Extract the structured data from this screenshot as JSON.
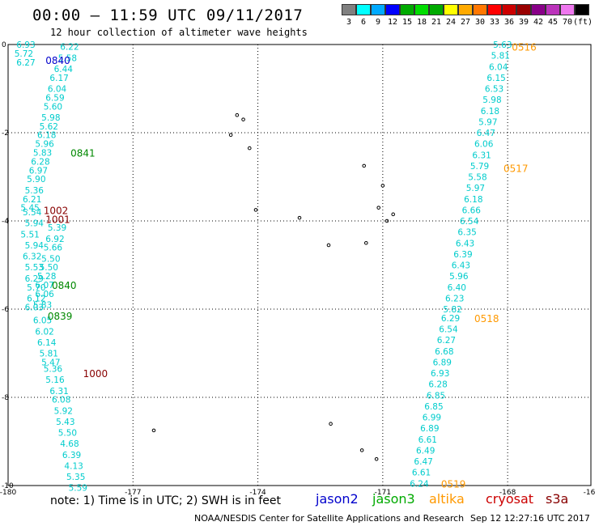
{
  "header": {
    "title": "00:00 – 11:59 UTC 09/11/2017",
    "subtitle": "12 hour collection of altimeter wave heights"
  },
  "legend": {
    "colors": [
      "#808080",
      "#00ffff",
      "#00aaff",
      "#0000ff",
      "#00aa00",
      "#00dd00",
      "#00aa00",
      "#ffff00",
      "#ffaa00",
      "#ff7700",
      "#ff0000",
      "#cc0000",
      "#990000",
      "#880088",
      "#bb33bb",
      "#ee77ee",
      "#000000"
    ],
    "labels": [
      "3",
      "6",
      "9",
      "12",
      "15",
      "18",
      "21",
      "24",
      "27",
      "30",
      "33",
      "36",
      "39",
      "42",
      "45",
      "70",
      "(ft)"
    ]
  },
  "map": {
    "lon_ticks": [
      "-180",
      "-177",
      "-174",
      "-171",
      "-168",
      "-16"
    ],
    "lat_ticks": [
      "0",
      "-2",
      "-4",
      "-6",
      "-8",
      "-10"
    ],
    "tracks": [
      {
        "values": [
          "6.93",
          "5.72",
          "6.27"
        ],
        "color": "#00cccc",
        "lonlat": [
          [
            -179.8,
            0.0
          ],
          [
            -179.85,
            -0.2
          ],
          [
            -179.8,
            -0.4
          ]
        ]
      },
      {
        "values": [
          "6.22",
          "5.58",
          "6.44",
          "6.17",
          "6.04",
          "6.59",
          "5.60",
          "5.98",
          "5.62",
          "6.18",
          "5.96",
          "5.83",
          "6.28",
          "6.97",
          "5.90",
          "5.36",
          "6.21",
          "5.45"
        ],
        "color": "#00cccc",
        "lonlat": [
          [
            -178.75,
            -0.05
          ],
          [
            -178.8,
            -0.3
          ],
          [
            -178.9,
            -0.55
          ],
          [
            -179.0,
            -0.75
          ],
          [
            -179.05,
            -1.0
          ],
          [
            -179.1,
            -1.2
          ],
          [
            -179.15,
            -1.4
          ],
          [
            -179.2,
            -1.65
          ],
          [
            -179.25,
            -1.85
          ],
          [
            -179.3,
            -2.05
          ],
          [
            -179.35,
            -2.25
          ],
          [
            -179.4,
            -2.45
          ],
          [
            -179.45,
            -2.65
          ],
          [
            -179.5,
            -2.85
          ],
          [
            -179.55,
            -3.05
          ],
          [
            -179.6,
            -3.3
          ],
          [
            -179.65,
            -3.5
          ],
          [
            -179.7,
            -3.7
          ]
        ]
      },
      {
        "values": [
          "5.54",
          "5.94",
          "5.51",
          "5.94",
          "6.32",
          "5.53",
          "6.29",
          "5.70",
          "6.12",
          "6.03"
        ],
        "color": "#00cccc",
        "lonlat": [
          [
            -179.65,
            -3.8
          ],
          [
            -179.6,
            -4.05
          ],
          [
            -179.7,
            -4.3
          ],
          [
            -179.6,
            -4.55
          ],
          [
            -179.65,
            -4.8
          ],
          [
            -179.6,
            -5.05
          ],
          [
            -179.6,
            -5.3
          ],
          [
            -179.55,
            -5.5
          ],
          [
            -179.55,
            -5.75
          ],
          [
            -179.6,
            -5.95
          ]
        ]
      },
      {
        "values": [
          "5.39",
          "6.92",
          "5.66",
          "5.50",
          "5.50",
          "5.28",
          "6.07",
          "6.06",
          "5.83"
        ],
        "color": "#00cccc",
        "lonlat": [
          [
            -179.05,
            -4.15
          ],
          [
            -179.1,
            -4.4
          ],
          [
            -179.15,
            -4.6
          ],
          [
            -179.2,
            -4.85
          ],
          [
            -179.25,
            -5.05
          ],
          [
            -179.3,
            -5.25
          ],
          [
            -179.35,
            -5.45
          ],
          [
            -179.35,
            -5.65
          ],
          [
            -179.4,
            -5.9
          ]
        ]
      },
      {
        "values": [
          "6.05",
          "6.02",
          "6.14",
          "5.81",
          "5.47",
          "5.36",
          "5.16",
          "6.31",
          "6.08",
          "5.92",
          "5.43",
          "5.50",
          "4.68",
          "6.39",
          "4.13",
          "5.35",
          "5.59"
        ],
        "color": "#00cccc",
        "lonlat": [
          [
            -179.4,
            -6.25
          ],
          [
            -179.35,
            -6.5
          ],
          [
            -179.3,
            -6.75
          ],
          [
            -179.25,
            -7.0
          ],
          [
            -179.2,
            -7.2
          ],
          [
            -179.15,
            -7.35
          ],
          [
            -179.1,
            -7.6
          ],
          [
            -179.0,
            -7.85
          ],
          [
            -178.95,
            -8.05
          ],
          [
            -178.9,
            -8.3
          ],
          [
            -178.85,
            -8.55
          ],
          [
            -178.8,
            -8.8
          ],
          [
            -178.75,
            -9.05
          ],
          [
            -178.7,
            -9.3
          ],
          [
            -178.65,
            -9.55
          ],
          [
            -178.6,
            -9.8
          ],
          [
            -178.55,
            -10.05
          ]
        ]
      },
      {
        "values": [
          "5.63",
          "5.81",
          "6.04",
          "6.15",
          "6.53",
          "5.98",
          "6.18",
          "5.97",
          "6.47",
          "6.06",
          "6.31",
          "5.79",
          "5.58",
          "5.97",
          "6.18",
          "6.66",
          "6.54",
          "6.35",
          "6.43",
          "6.39",
          "6.43",
          "5.96",
          "6.40",
          "6.23",
          "5.82",
          "6.29",
          "6.54",
          "6.27",
          "6.68",
          "6.89",
          "6.93",
          "6.28",
          "6.85",
          "6.85",
          "6.99",
          "6.89",
          "6.61",
          "6.49",
          "6.47",
          "6.61",
          "6.24"
        ],
        "color": "#00cccc",
        "lonlat": [
          [
            -168.35,
            0.0
          ],
          [
            -168.4,
            -0.25
          ],
          [
            -168.45,
            -0.5
          ],
          [
            -168.5,
            -0.75
          ],
          [
            -168.55,
            -1.0
          ],
          [
            -168.6,
            -1.25
          ],
          [
            -168.65,
            -1.5
          ],
          [
            -168.7,
            -1.75
          ],
          [
            -168.75,
            -2.0
          ],
          [
            -168.8,
            -2.25
          ],
          [
            -168.85,
            -2.5
          ],
          [
            -168.9,
            -2.75
          ],
          [
            -168.95,
            -3.0
          ],
          [
            -169.0,
            -3.25
          ],
          [
            -169.05,
            -3.5
          ],
          [
            -169.1,
            -3.75
          ],
          [
            -169.15,
            -4.0
          ],
          [
            -169.2,
            -4.25
          ],
          [
            -169.25,
            -4.5
          ],
          [
            -169.3,
            -4.75
          ],
          [
            -169.35,
            -5.0
          ],
          [
            -169.4,
            -5.25
          ],
          [
            -169.45,
            -5.5
          ],
          [
            -169.5,
            -5.75
          ],
          [
            -169.55,
            -6.0
          ],
          [
            -169.6,
            -6.2
          ],
          [
            -169.65,
            -6.45
          ],
          [
            -169.7,
            -6.7
          ],
          [
            -169.75,
            -6.95
          ],
          [
            -169.8,
            -7.2
          ],
          [
            -169.85,
            -7.45
          ],
          [
            -169.9,
            -7.7
          ],
          [
            -169.95,
            -7.95
          ],
          [
            -170.0,
            -8.2
          ],
          [
            -170.05,
            -8.45
          ],
          [
            -170.1,
            -8.7
          ],
          [
            -170.15,
            -8.95
          ],
          [
            -170.2,
            -9.2
          ],
          [
            -170.25,
            -9.45
          ],
          [
            -170.3,
            -9.7
          ],
          [
            -170.35,
            -9.95
          ]
        ]
      }
    ],
    "time_labels": [
      {
        "text": "0840",
        "color": "#0000cc",
        "lon": -179.1,
        "lat": -0.35
      },
      {
        "text": "0841",
        "color": "#008800",
        "lon": -178.5,
        "lat": -2.45
      },
      {
        "text": "1002",
        "color": "#880000",
        "lon": -179.15,
        "lat": -3.75
      },
      {
        "text": "1001",
        "color": "#880000",
        "lon": -179.1,
        "lat": -3.95
      },
      {
        "text": "0840",
        "color": "#008800",
        "lon": -178.95,
        "lat": -5.45
      },
      {
        "text": "0839",
        "color": "#008800",
        "lon": -179.05,
        "lat": -6.15
      },
      {
        "text": "1000",
        "color": "#880000",
        "lon": -178.2,
        "lat": -7.45
      },
      {
        "text": "0516",
        "color": "#ff9900",
        "lon": -167.9,
        "lat": -0.05
      },
      {
        "text": "0517",
        "color": "#ff9900",
        "lon": -168.1,
        "lat": -2.8
      },
      {
        "text": "0518",
        "color": "#ff9900",
        "lon": -168.8,
        "lat": -6.2
      },
      {
        "text": "0519",
        "color": "#ff9900",
        "lon": -169.6,
        "lat": -9.95
      }
    ],
    "islands": [
      {
        "lon": -174.5,
        "lat": -1.6
      },
      {
        "lon": -174.35,
        "lat": -1.7
      },
      {
        "lon": -174.65,
        "lat": -2.05
      },
      {
        "lon": -174.2,
        "lat": -2.35
      },
      {
        "lon": -174.05,
        "lat": -3.75
      },
      {
        "lon": -173.0,
        "lat": -3.93
      },
      {
        "lon": -171.45,
        "lat": -2.75
      },
      {
        "lon": -171.0,
        "lat": -3.2
      },
      {
        "lon": -171.1,
        "lat": -3.7
      },
      {
        "lon": -170.75,
        "lat": -3.85
      },
      {
        "lon": -170.9,
        "lat": -4.0
      },
      {
        "lon": -172.3,
        "lat": -4.55
      },
      {
        "lon": -171.4,
        "lat": -4.5
      },
      {
        "lon": -172.25,
        "lat": -8.6
      },
      {
        "lon": -176.5,
        "lat": -8.75
      },
      {
        "lon": -171.5,
        "lat": -9.2
      },
      {
        "lon": -171.15,
        "lat": -9.4
      }
    ]
  },
  "footer": {
    "note": "note:  1) Time is in UTC; 2) SWH is in feet",
    "missions": [
      {
        "name": "jason2",
        "color": "#0000cc"
      },
      {
        "name": "jason3",
        "color": "#00aa00"
      },
      {
        "name": "altika",
        "color": "#ff9900"
      },
      {
        "name": "cryosat",
        "color": "#cc0000"
      },
      {
        "name": "s3a",
        "color": "#880000"
      }
    ],
    "credit": "NOAA/NESDIS Center for Satellite Applications and Research",
    "timestamp": "Sep 12 12:27:16 UTC 2017"
  }
}
